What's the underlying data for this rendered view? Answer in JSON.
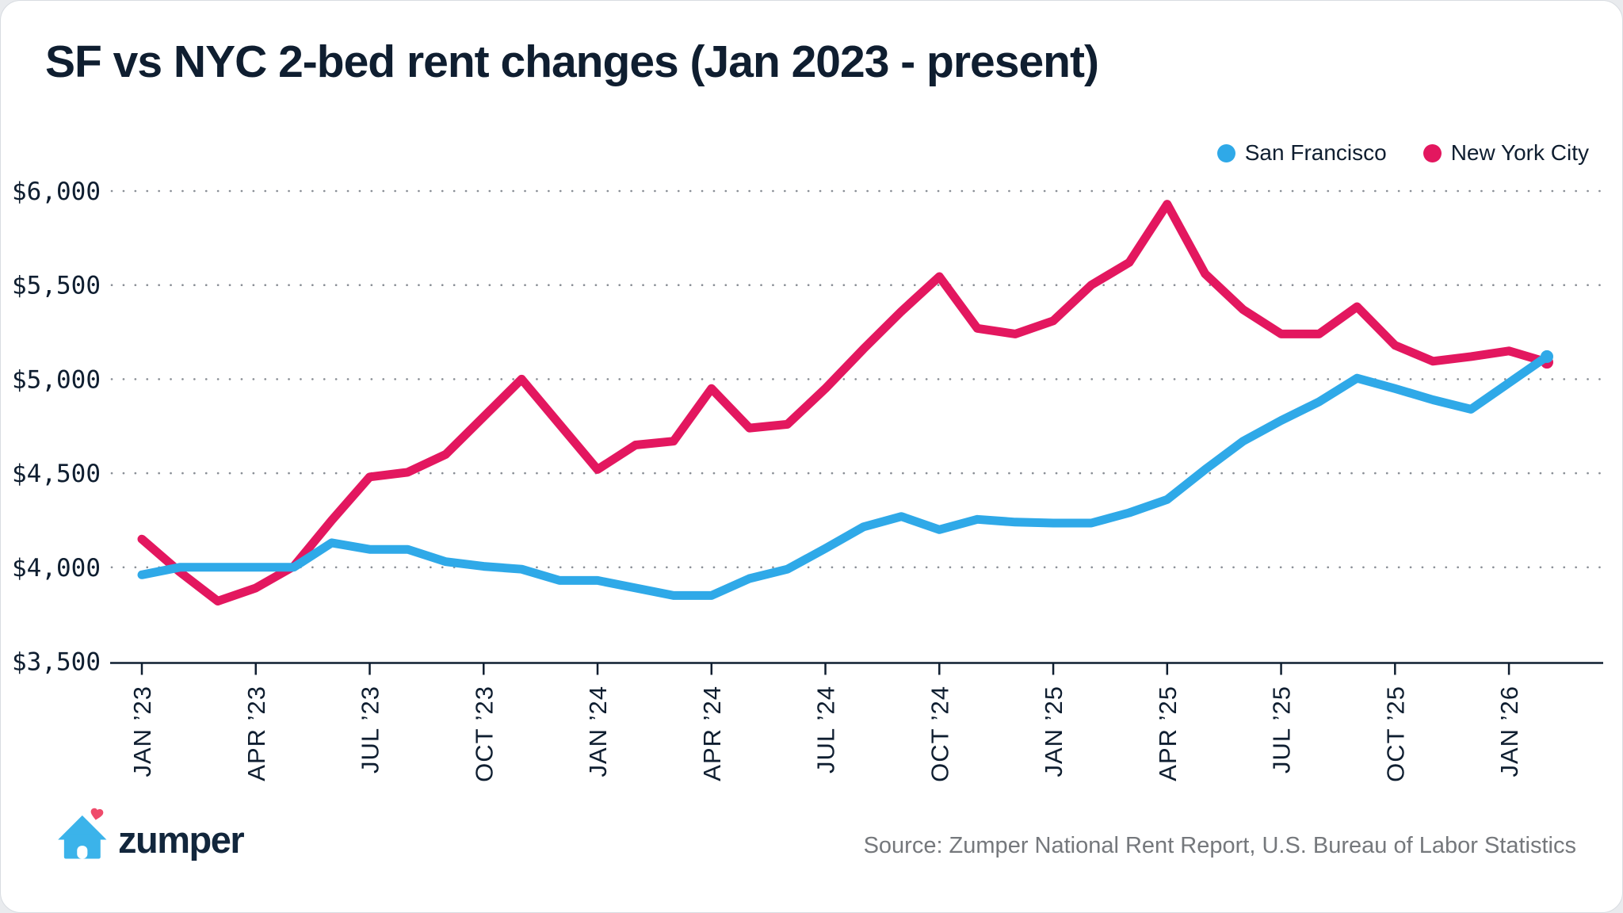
{
  "header": {
    "title": "SF vs NYC 2-bed rent changes (Jan 2023 - present)"
  },
  "legend": {
    "items": [
      {
        "label": "San Francisco",
        "color": "#2FA9E8"
      },
      {
        "label": "New York City",
        "color": "#E3175F"
      }
    ]
  },
  "footer": {
    "logo_text": "zumper",
    "source": "Source: Zumper National Rent Report, U.S. Bureau of Labor Statistics"
  },
  "colors": {
    "navy": "#0F1E30",
    "grid_dot": "#8A8F96",
    "sf_blue": "#2FA9E8",
    "nyc_pink": "#E3175F",
    "source_gray": "#75787C",
    "logo_blue": "#3BB3EA",
    "logo_heart": "#EF4B6B"
  },
  "chart_data": {
    "type": "line",
    "title": "SF vs NYC 2-bed rent changes (Jan 2023 - present)",
    "grid": "dotted horizontal gridlines, solid bottom axis",
    "legend_position": "top-right",
    "ylim": [
      3500,
      6000
    ],
    "x": [
      "Jan '23",
      "Feb '23",
      "Mar '23",
      "Apr '23",
      "May '23",
      "Jun '23",
      "Jul '23",
      "Aug '23",
      "Sep '23",
      "Oct '23",
      "Nov '23",
      "Dec '23",
      "Jan '24",
      "Feb '24",
      "Mar '24",
      "Apr '24",
      "May '24",
      "Jun '24",
      "Jul '24",
      "Aug '24",
      "Sep '24",
      "Oct '24",
      "Nov '24",
      "Dec '24",
      "Jan '25",
      "Feb '25",
      "Mar '25",
      "Apr '25",
      "May '25",
      "Jun '25",
      "Jul '25",
      "Aug '25",
      "Sep '25",
      "Oct '25",
      "Nov '25",
      "Dec '25",
      "Jan '26",
      "Feb '26"
    ],
    "series": [
      {
        "name": "San Francisco",
        "color": "#2FA9E8",
        "values": [
          3960,
          4000,
          4000,
          4000,
          4000,
          4130,
          4095,
          4095,
          4030,
          4005,
          3990,
          3930,
          3930,
          3890,
          3850,
          3850,
          3940,
          3990,
          4100,
          4215,
          4270,
          4200,
          4255,
          4240,
          4235,
          4235,
          4290,
          4360,
          4520,
          4670,
          4780,
          4880,
          5005,
          4950,
          4890,
          4840,
          4980,
          5120
        ]
      },
      {
        "name": "New York City",
        "color": "#E3175F",
        "values": [
          4150,
          3975,
          3820,
          3890,
          4005,
          4250,
          4480,
          4505,
          4600,
          4800,
          5000,
          4760,
          4520,
          4650,
          4670,
          4950,
          4740,
          4760,
          4950,
          5160,
          5360,
          5545,
          5270,
          5240,
          5310,
          5500,
          5620,
          5930,
          5560,
          5370,
          5240,
          5240,
          5385,
          5180,
          5095,
          5120,
          5150,
          5090
        ]
      }
    ],
    "yticks": [
      {
        "value": 3500,
        "label": "$3,500"
      },
      {
        "value": 4000,
        "label": "$4,000"
      },
      {
        "value": 4500,
        "label": "$4,500"
      },
      {
        "value": 5000,
        "label": "$5,000"
      },
      {
        "value": 5500,
        "label": "$5,500"
      },
      {
        "value": 6000,
        "label": "$6,000"
      }
    ],
    "xticks": [
      {
        "index": 0,
        "label": "JAN ’23"
      },
      {
        "index": 3,
        "label": "APR ’23"
      },
      {
        "index": 6,
        "label": "JUL ’23"
      },
      {
        "index": 9,
        "label": "OCT ’23"
      },
      {
        "index": 12,
        "label": "JAN ’24"
      },
      {
        "index": 15,
        "label": "APR ’24"
      },
      {
        "index": 18,
        "label": "JUL ’24"
      },
      {
        "index": 21,
        "label": "OCT ’24"
      },
      {
        "index": 24,
        "label": "JAN ’25"
      },
      {
        "index": 27,
        "label": "APR ’25"
      },
      {
        "index": 30,
        "label": "JUL ’25"
      },
      {
        "index": 33,
        "label": "OCT ’25"
      },
      {
        "index": 36,
        "label": "JAN ’26"
      }
    ]
  }
}
